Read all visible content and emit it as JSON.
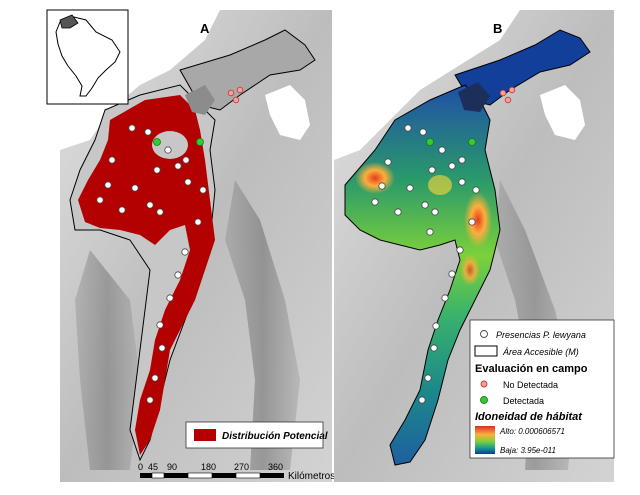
{
  "panels": [
    {
      "letter": "A"
    },
    {
      "letter": "B"
    }
  ],
  "legend_a": {
    "title": "Distribución Potencial",
    "swatch_color": "#b30000"
  },
  "scale_bar": {
    "ticks": [
      "0",
      "45",
      "90",
      "180",
      "270",
      "360"
    ],
    "unit": "Kilómetros"
  },
  "legend_b": {
    "presences_label": "Presencias P. lewyana",
    "area_label": "Área Accesible (M)",
    "section_title": "Evaluación en campo",
    "not_detected_label": "No Detectada",
    "detected_label": "Detectada",
    "suitability_title": "Idoneidad de hábitat",
    "high_label": "Alto: 0.000606571",
    "low_label": "Baja: 3.95e-011",
    "not_detected_color": "#e06060",
    "detected_color": "#33cc33"
  },
  "colors": {
    "potential_distribution": "#b30000",
    "suitability_high": "#d7301f",
    "suitability_mid": "#7cd13a",
    "suitability_low": "#0a3d8f"
  }
}
